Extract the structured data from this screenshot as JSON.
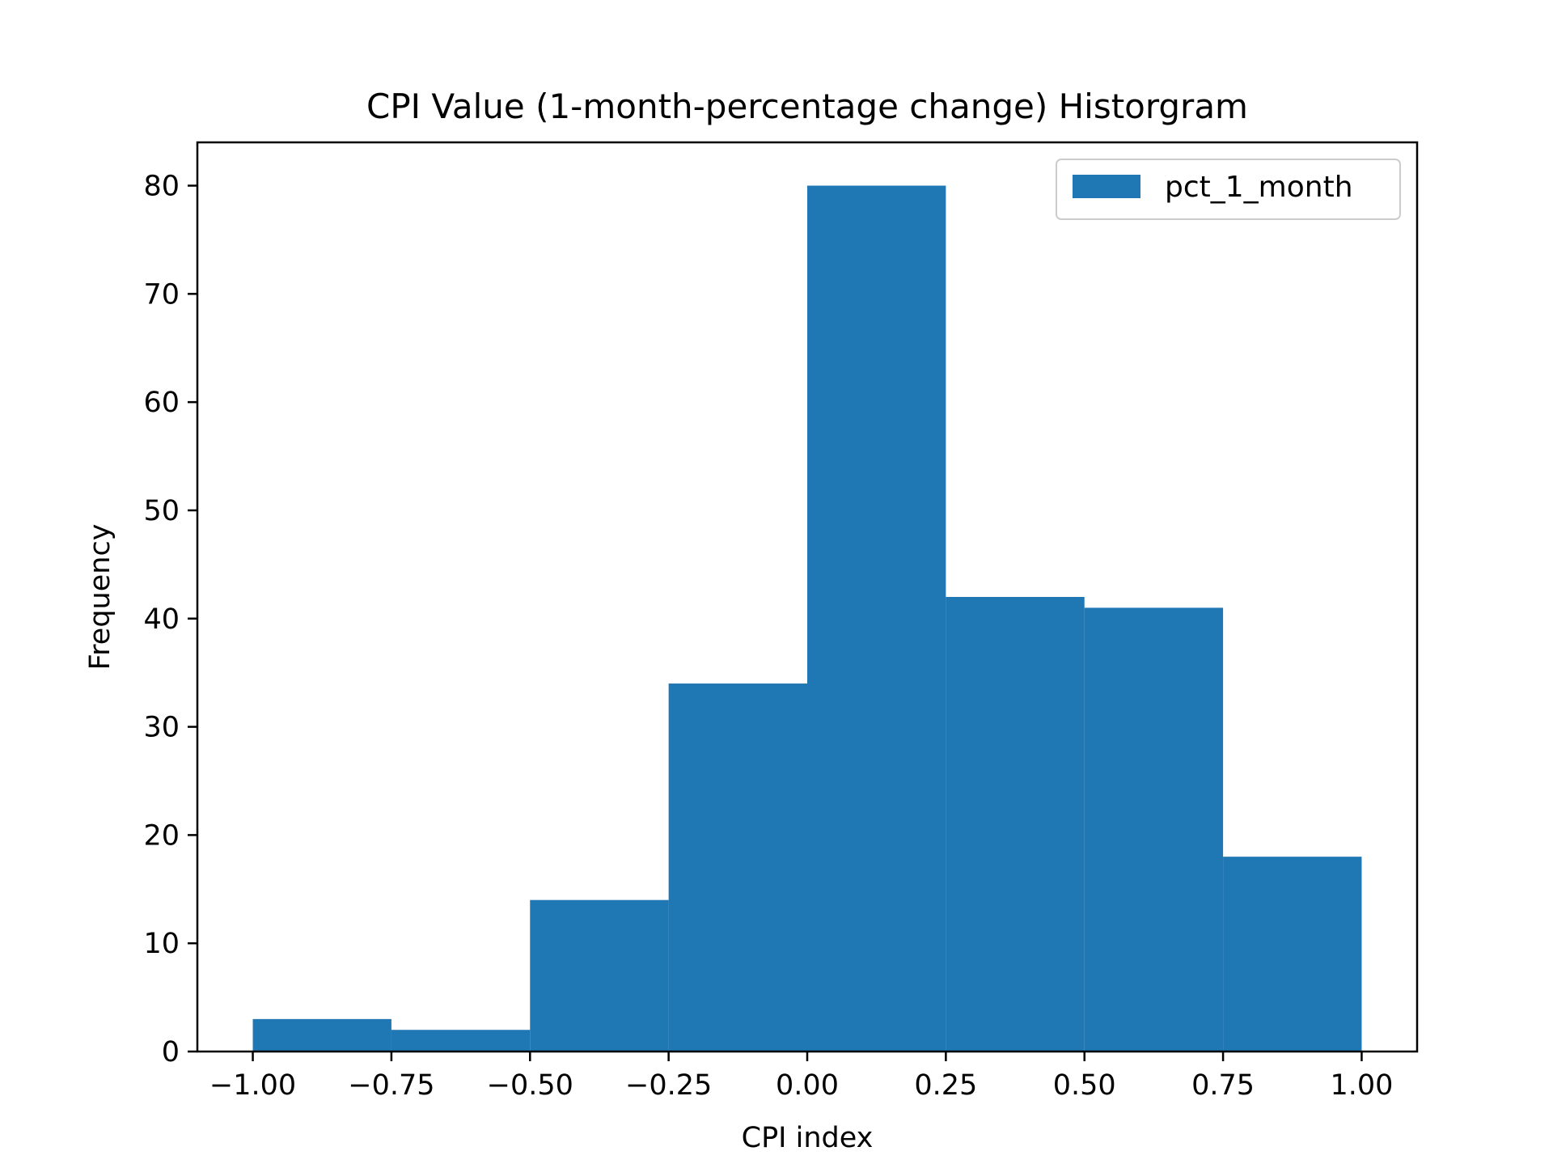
{
  "chart_data": {
    "type": "bar",
    "title": "CPI Value (1-month-percentage change) Historgram",
    "xlabel": "CPI index",
    "ylabel": "Frequency",
    "bin_edges": [
      -1.0,
      -0.75,
      -0.5,
      -0.25,
      0.0,
      0.25,
      0.5,
      0.75,
      1.0
    ],
    "series": [
      {
        "name": "pct_1_month",
        "values": [
          3,
          2,
          14,
          34,
          80,
          42,
          41,
          18
        ],
        "color": "#1f77b4"
      }
    ],
    "x_ticks": [
      -1.0,
      -0.75,
      -0.5,
      -0.25,
      0.0,
      0.25,
      0.5,
      0.75,
      1.0
    ],
    "x_tick_labels": [
      "−1.00",
      "−0.75",
      "−0.50",
      "−0.25",
      "0.00",
      "0.25",
      "0.50",
      "0.75",
      "1.00"
    ],
    "y_ticks": [
      0,
      10,
      20,
      30,
      40,
      50,
      60,
      70,
      80
    ],
    "y_tick_labels": [
      "0",
      "10",
      "20",
      "30",
      "40",
      "50",
      "60",
      "70",
      "80"
    ],
    "xlim": [
      -1.1,
      1.1
    ],
    "ylim": [
      0,
      84
    ],
    "grid": false,
    "legend_position": "top-right"
  }
}
